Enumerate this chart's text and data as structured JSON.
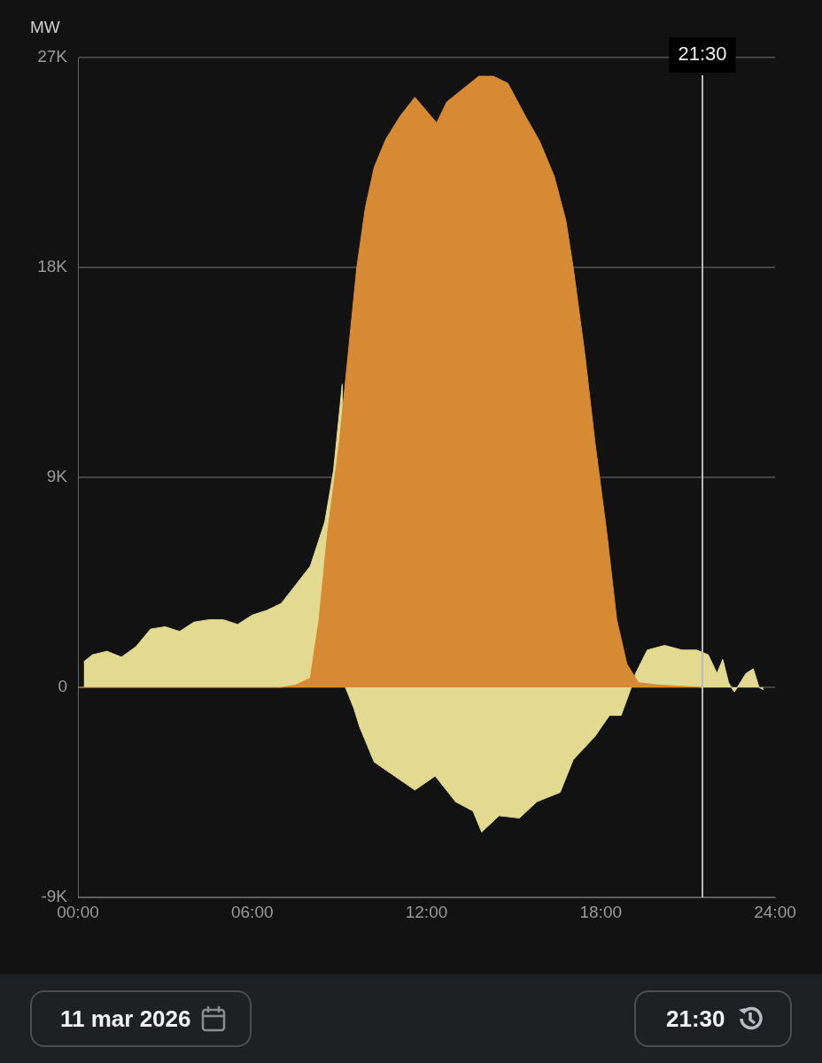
{
  "chart_data": {
    "type": "area",
    "ylabel": "MW",
    "xlim": [
      0,
      24
    ],
    "xticks": [
      {
        "value": 0,
        "label": "00:00"
      },
      {
        "value": 6,
        "label": "06:00"
      },
      {
        "value": 12,
        "label": "12:00"
      },
      {
        "value": 18,
        "label": "18:00"
      },
      {
        "value": 24,
        "label": "24:00"
      }
    ],
    "ylim": [
      -9000,
      27000
    ],
    "yticks": [
      {
        "value": -9000,
        "label": "-9K"
      },
      {
        "value": 0,
        "label": "0"
      },
      {
        "value": 9000,
        "label": "9K"
      },
      {
        "value": 18000,
        "label": "18K"
      },
      {
        "value": 27000,
        "label": "27K"
      }
    ],
    "grid": "y",
    "series": [
      {
        "color": "#e3da92",
        "x": [
          0.2,
          0.5,
          1,
          1.5,
          2,
          2.5,
          3,
          3.5,
          4,
          4.5,
          5,
          5.5,
          6,
          6.5,
          7,
          7.5,
          8,
          8.5,
          8.8,
          9.1,
          9.21,
          9.5,
          9.7,
          10.2,
          10.9,
          11.6,
          12.3,
          13,
          13.6,
          13.9,
          14.5,
          15.2,
          15.8,
          16.6,
          17.05,
          17.8,
          18.3,
          18.7,
          19.05,
          19.2,
          19.6,
          20.2,
          20.8,
          21.3,
          21.7,
          22,
          22.2,
          22.4,
          22.6,
          23,
          23.25,
          23.45,
          23.6
        ],
        "values": [
          1100,
          1400,
          1550,
          1300,
          1750,
          2500,
          2600,
          2400,
          2800,
          2900,
          2900,
          2700,
          3100,
          3300,
          3600,
          4400,
          5200,
          7100,
          9300,
          13000,
          0,
          -900,
          -1700,
          -3200,
          -3800,
          -4400,
          -3800,
          -4900,
          -5300,
          -6200,
          -5500,
          -5600,
          -4900,
          -4500,
          -3100,
          -2100,
          -1200,
          -1200,
          0,
          600,
          1600,
          1800,
          1600,
          1600,
          1400,
          600,
          1200,
          200,
          -200,
          600,
          800,
          0,
          -100
        ]
      },
      {
        "color": "#d68a33",
        "x": [
          0,
          7,
          7.5,
          8,
          8.3,
          8.6,
          9,
          9.6,
          9.9,
          10.2,
          10.6,
          11.1,
          11.6,
          12.35,
          12.7,
          13.3,
          13.8,
          14.3,
          14.8,
          15.4,
          15.9,
          16.4,
          16.8,
          17.05,
          17.45,
          17.8,
          18.2,
          18.55,
          18.9,
          19.3,
          20,
          21.5
        ],
        "values": [
          0,
          0,
          100,
          400,
          2900,
          6700,
          10500,
          18000,
          20600,
          22300,
          23500,
          24500,
          25300,
          24200,
          25100,
          25700,
          26200,
          26200,
          25900,
          24500,
          23400,
          21900,
          20000,
          18000,
          14300,
          10500,
          6700,
          2900,
          1000,
          200,
          100,
          0
        ]
      }
    ],
    "ref_lines": [
      {
        "axis": "x",
        "value": 21.5,
        "label": "21:30",
        "color": "#b8bcc2"
      }
    ],
    "annotations": [
      "11 mar 2026",
      "21:30"
    ]
  }
}
